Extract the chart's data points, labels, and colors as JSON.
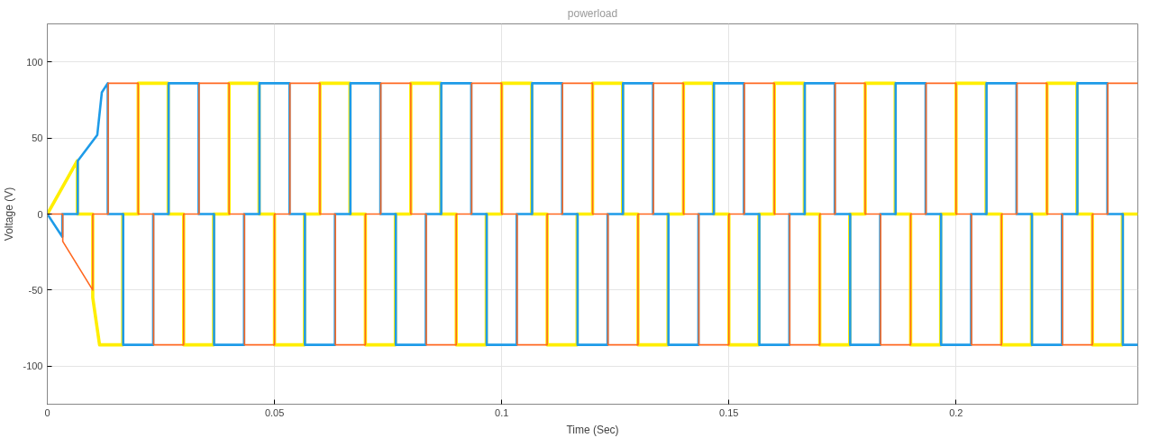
{
  "chart_data": {
    "type": "line",
    "title": "powerload",
    "xlabel": "Time (Sec)",
    "ylabel": "Voltage (V)",
    "xlim": [
      0,
      0.24
    ],
    "ylim": [
      -125,
      125
    ],
    "xticks": [
      0,
      0.05,
      0.1,
      0.15,
      0.2
    ],
    "yticks": [
      -100,
      -50,
      0,
      50,
      100
    ],
    "grid": true,
    "marker": "none",
    "line_style": "solid",
    "series": [
      {
        "color": "#ffee00",
        "x": [
          0,
          0.0066,
          0.0066,
          0.01,
          0.01,
          0.0115,
          0.0166,
          0.0166,
          0.02,
          0.02,
          0.0266,
          0.0266,
          0.03,
          0.03,
          0.0366,
          0.0366,
          0.04,
          0.04,
          0.0466,
          0.0466,
          0.05,
          0.05,
          0.0566,
          0.0566,
          0.06,
          0.06,
          0.0666,
          0.0666,
          0.07,
          0.07,
          0.0766,
          0.0766,
          0.08,
          0.08,
          0.0866,
          0.0866,
          0.09,
          0.09,
          0.0966,
          0.0966,
          0.1,
          0.1,
          0.1066,
          0.1066,
          0.11,
          0.11,
          0.1166,
          0.1166,
          0.12,
          0.12,
          0.1266,
          0.1266,
          0.13,
          0.13,
          0.1366,
          0.1366,
          0.14,
          0.14,
          0.1466,
          0.1466,
          0.15,
          0.15,
          0.1566,
          0.1566,
          0.16,
          0.16,
          0.1666,
          0.1666,
          0.17,
          0.17,
          0.1766,
          0.1766,
          0.18,
          0.18,
          0.1866,
          0.1866,
          0.19,
          0.19,
          0.1966,
          0.1966,
          0.2,
          0.2,
          0.2066,
          0.2066,
          0.21,
          0.21,
          0.2166,
          0.2166,
          0.22,
          0.22,
          0.2266,
          0.2266,
          0.23,
          0.23,
          0.2366,
          0.2366,
          0.24
        ],
        "values": [
          0,
          35,
          0,
          0,
          -55,
          -86,
          -86,
          0,
          0,
          86,
          86,
          0,
          0,
          -86,
          -86,
          0,
          0,
          86,
          86,
          0,
          0,
          -86,
          -86,
          0,
          0,
          86,
          86,
          0,
          0,
          -86,
          -86,
          0,
          0,
          86,
          86,
          0,
          0,
          -86,
          -86,
          0,
          0,
          86,
          86,
          0,
          0,
          -86,
          -86,
          0,
          0,
          86,
          86,
          0,
          0,
          -86,
          -86,
          0,
          0,
          86,
          86,
          0,
          0,
          -86,
          -86,
          0,
          0,
          86,
          86,
          0,
          0,
          -86,
          -86,
          0,
          0,
          86,
          86,
          0,
          0,
          -86,
          -86,
          0,
          0,
          86,
          86,
          0,
          0,
          -86,
          -86,
          0,
          0,
          86,
          86,
          0,
          0,
          -86,
          -86,
          0,
          0
        ]
      },
      {
        "color": "#1e9be8",
        "x": [
          0,
          0.0033,
          0.0033,
          0.0067,
          0.0067,
          0.011,
          0.012,
          0.0133,
          0.0133,
          0.0167,
          0.0167,
          0.0233,
          0.0233,
          0.0267,
          0.0267,
          0.0333,
          0.0333,
          0.0367,
          0.0367,
          0.0433,
          0.0433,
          0.0467,
          0.0467,
          0.0533,
          0.0533,
          0.0567,
          0.0567,
          0.0633,
          0.0633,
          0.0667,
          0.0667,
          0.0733,
          0.0733,
          0.0767,
          0.0767,
          0.0833,
          0.0833,
          0.0867,
          0.0867,
          0.0933,
          0.0933,
          0.0967,
          0.0967,
          0.1033,
          0.1033,
          0.1067,
          0.1067,
          0.1133,
          0.1133,
          0.1167,
          0.1167,
          0.1233,
          0.1233,
          0.1267,
          0.1267,
          0.1333,
          0.1333,
          0.1367,
          0.1367,
          0.1433,
          0.1433,
          0.1467,
          0.1467,
          0.1533,
          0.1533,
          0.1567,
          0.1567,
          0.1633,
          0.1633,
          0.1667,
          0.1667,
          0.1733,
          0.1733,
          0.1767,
          0.1767,
          0.1833,
          0.1833,
          0.1867,
          0.1867,
          0.1933,
          0.1933,
          0.1967,
          0.1967,
          0.2033,
          0.2033,
          0.2067,
          0.2067,
          0.2133,
          0.2133,
          0.2167,
          0.2167,
          0.2233,
          0.2233,
          0.2267,
          0.2267,
          0.2333,
          0.2333,
          0.2367,
          0.2367,
          0.24
        ],
        "values": [
          0,
          -15,
          0,
          0,
          35,
          52,
          80,
          86,
          0,
          0,
          -86,
          -86,
          0,
          0,
          86,
          86,
          0,
          0,
          -86,
          -86,
          0,
          0,
          86,
          86,
          0,
          0,
          -86,
          -86,
          0,
          0,
          86,
          86,
          0,
          0,
          -86,
          -86,
          0,
          0,
          86,
          86,
          0,
          0,
          -86,
          -86,
          0,
          0,
          86,
          86,
          0,
          0,
          -86,
          -86,
          0,
          0,
          86,
          86,
          0,
          0,
          -86,
          -86,
          0,
          0,
          86,
          86,
          0,
          0,
          -86,
          -86,
          0,
          0,
          86,
          86,
          0,
          0,
          -86,
          -86,
          0,
          0,
          86,
          86,
          0,
          0,
          -86,
          -86,
          0,
          0,
          86,
          86,
          0,
          0,
          -86,
          -86,
          0,
          0,
          86,
          86,
          0,
          0,
          -86,
          -86
        ]
      },
      {
        "color": "#ff6820",
        "x": [
          0,
          0.0034,
          0.0034,
          0.01,
          0.01,
          0.0134,
          0.0134,
          0.02,
          0.02,
          0.0234,
          0.0234,
          0.03,
          0.03,
          0.0334,
          0.0334,
          0.04,
          0.04,
          0.0434,
          0.0434,
          0.05,
          0.05,
          0.0534,
          0.0534,
          0.06,
          0.06,
          0.0634,
          0.0634,
          0.07,
          0.07,
          0.0734,
          0.0734,
          0.08,
          0.08,
          0.0834,
          0.0834,
          0.09,
          0.09,
          0.0934,
          0.0934,
          0.1,
          0.1,
          0.1034,
          0.1034,
          0.11,
          0.11,
          0.1134,
          0.1134,
          0.12,
          0.12,
          0.1234,
          0.1234,
          0.13,
          0.13,
          0.1334,
          0.1334,
          0.14,
          0.14,
          0.1434,
          0.1434,
          0.15,
          0.15,
          0.1534,
          0.1534,
          0.16,
          0.16,
          0.1634,
          0.1634,
          0.17,
          0.17,
          0.1734,
          0.1734,
          0.18,
          0.18,
          0.1834,
          0.1834,
          0.19,
          0.19,
          0.1934,
          0.1934,
          0.2,
          0.2,
          0.2034,
          0.2034,
          0.21,
          0.21,
          0.2134,
          0.2134,
          0.22,
          0.22,
          0.2234,
          0.2234,
          0.23,
          0.23,
          0.2334,
          0.2334,
          0.24
        ],
        "values": [
          0,
          0,
          -18,
          -50,
          0,
          0,
          86,
          86,
          0,
          0,
          -86,
          -86,
          0,
          0,
          86,
          86,
          0,
          0,
          -86,
          -86,
          0,
          0,
          86,
          86,
          0,
          0,
          -86,
          -86,
          0,
          0,
          86,
          86,
          0,
          0,
          -86,
          -86,
          0,
          0,
          86,
          86,
          0,
          0,
          -86,
          -86,
          0,
          0,
          86,
          86,
          0,
          0,
          -86,
          -86,
          0,
          0,
          86,
          86,
          0,
          0,
          -86,
          -86,
          0,
          0,
          86,
          86,
          0,
          0,
          -86,
          -86,
          0,
          0,
          86,
          86,
          0,
          0,
          -86,
          -86,
          0,
          0,
          86,
          86,
          0,
          0,
          -86,
          -86,
          0,
          0,
          86,
          86,
          0,
          0,
          -86,
          -86,
          0,
          0,
          86,
          86
        ]
      }
    ]
  }
}
